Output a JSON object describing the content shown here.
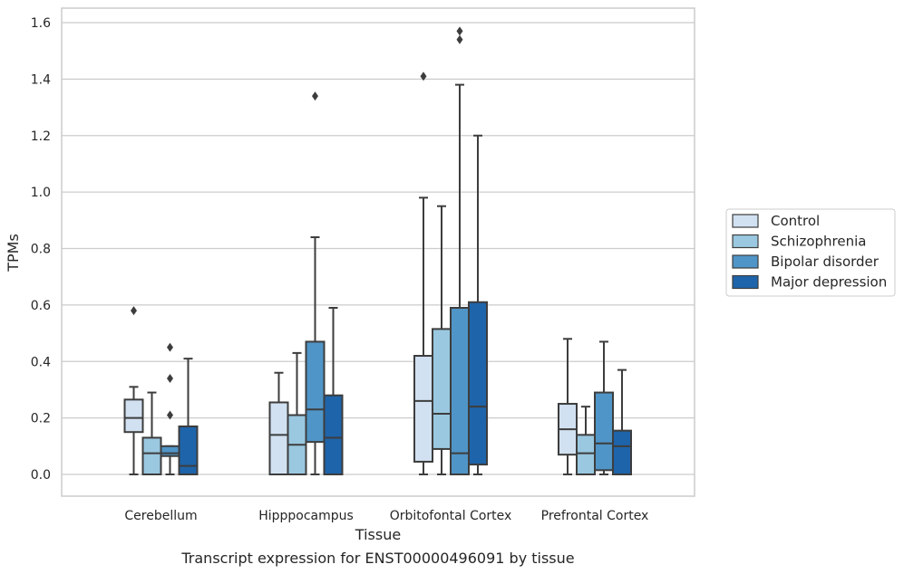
{
  "chart_data": {
    "type": "box",
    "caption": "Transcript expression for ENST00000496091 by tissue",
    "xlabel": "Tissue",
    "ylabel": "TPMs",
    "ylim": [
      -0.075,
      1.65
    ],
    "yticks": [
      0.0,
      0.2,
      0.4,
      0.6,
      0.8,
      1.0,
      1.2,
      1.4,
      1.6
    ],
    "ytick_labels": [
      "0.0",
      "0.2",
      "0.4",
      "0.6",
      "0.8",
      "1.0",
      "1.2",
      "1.4",
      "1.6"
    ],
    "grid": true,
    "legend_position": "outside-right",
    "categories": [
      "Cerebellum",
      "Hipppocampus",
      "Orbitofontal Cortex",
      "Prefrontal Cortex"
    ],
    "series": [
      {
        "name": "Control",
        "color": "#d1e1f1",
        "boxes": [
          {
            "whislo": 0.0,
            "q1": 0.15,
            "med": 0.2,
            "q3": 0.265,
            "whishi": 0.31,
            "fliers": [
              0.58
            ]
          },
          {
            "whislo": 0.0,
            "q1": 0.0,
            "med": 0.14,
            "q3": 0.255,
            "whishi": 0.36,
            "fliers": []
          },
          {
            "whislo": 0.0,
            "q1": 0.045,
            "med": 0.26,
            "q3": 0.42,
            "whishi": 0.98,
            "fliers": [
              1.41
            ]
          },
          {
            "whislo": 0.0,
            "q1": 0.07,
            "med": 0.16,
            "q3": 0.25,
            "whishi": 0.48,
            "fliers": []
          }
        ]
      },
      {
        "name": "Schizophrenia",
        "color": "#9ac8e0",
        "boxes": [
          {
            "whislo": 0.0,
            "q1": 0.0,
            "med": 0.075,
            "q3": 0.13,
            "whishi": 0.29,
            "fliers": []
          },
          {
            "whislo": 0.0,
            "q1": 0.0,
            "med": 0.105,
            "q3": 0.21,
            "whishi": 0.43,
            "fliers": []
          },
          {
            "whislo": 0.0,
            "q1": 0.09,
            "med": 0.215,
            "q3": 0.515,
            "whishi": 0.95,
            "fliers": []
          },
          {
            "whislo": 0.0,
            "q1": 0.0,
            "med": 0.075,
            "q3": 0.14,
            "whishi": 0.24,
            "fliers": []
          }
        ]
      },
      {
        "name": "Bipolar disorder",
        "color": "#5095c7",
        "boxes": [
          {
            "whislo": 0.0,
            "q1": 0.065,
            "med": 0.075,
            "q3": 0.1,
            "whishi": 0.1,
            "fliers": [
              0.21,
              0.34,
              0.45
            ]
          },
          {
            "whislo": 0.0,
            "q1": 0.115,
            "med": 0.23,
            "q3": 0.47,
            "whishi": 0.84,
            "fliers": [
              1.34
            ]
          },
          {
            "whislo": 0.0,
            "q1": 0.0,
            "med": 0.075,
            "q3": 0.59,
            "whishi": 1.38,
            "fliers": [
              1.54,
              1.57
            ]
          },
          {
            "whislo": 0.0,
            "q1": 0.015,
            "med": 0.11,
            "q3": 0.29,
            "whishi": 0.47,
            "fliers": []
          }
        ]
      },
      {
        "name": "Major depression",
        "color": "#1e64aa",
        "boxes": [
          {
            "whislo": 0.0,
            "q1": 0.0,
            "med": 0.03,
            "q3": 0.17,
            "whishi": 0.41,
            "fliers": []
          },
          {
            "whislo": 0.0,
            "q1": 0.0,
            "med": 0.13,
            "q3": 0.28,
            "whishi": 0.59,
            "fliers": []
          },
          {
            "whislo": 0.0,
            "q1": 0.035,
            "med": 0.24,
            "q3": 0.61,
            "whishi": 1.2,
            "fliers": []
          },
          {
            "whislo": 0.0,
            "q1": 0.0,
            "med": 0.1,
            "q3": 0.155,
            "whishi": 0.37,
            "fliers": []
          }
        ]
      }
    ]
  }
}
